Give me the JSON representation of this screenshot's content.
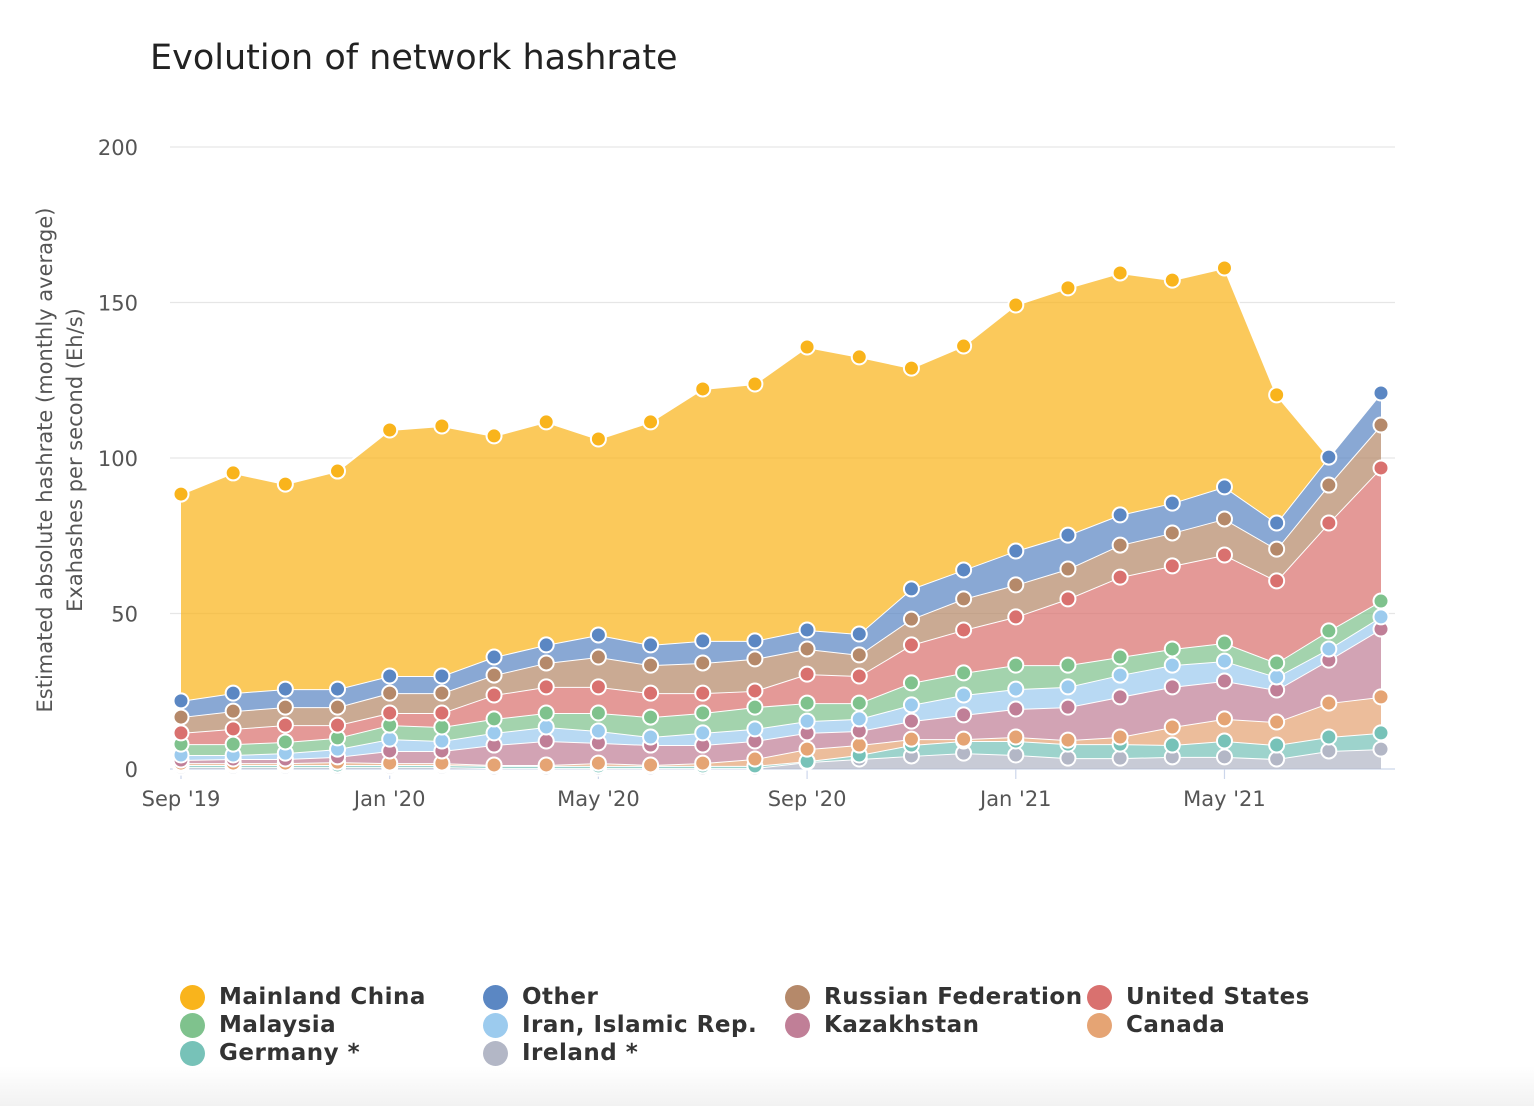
{
  "chart_data": {
    "type": "area",
    "stacked": true,
    "title": "Evolution of network hashrate",
    "ylabel": "Estimated absolute hashrate (monthly average)",
    "ylabel2": "Exahashes per second (Eh/s)",
    "ylim": [
      0,
      200
    ],
    "yticks": [
      0,
      50,
      100,
      150,
      200
    ],
    "grid": true,
    "legend_position": "bottom",
    "x": [
      "Sep '19",
      "Oct '19",
      "Nov '19",
      "Dec '19",
      "Jan '20",
      "Feb '20",
      "Mar '20",
      "Apr '20",
      "May '20",
      "Jun '20",
      "Jul '20",
      "Aug '20",
      "Sep '20",
      "Oct '20",
      "Nov '20",
      "Dec '20",
      "Jan '21",
      "Feb '21",
      "Mar '21",
      "Apr '21",
      "May '21",
      "Jun '21",
      "Jul '21",
      "Aug '21"
    ],
    "xtick_labels": [
      "Sep '19",
      "Jan '20",
      "May '20",
      "Sep '20",
      "Jan '21",
      "May '21"
    ],
    "series": [
      {
        "name": "Ireland *",
        "color": "#b3b7c6",
        "values": [
          0.6,
          0.6,
          0.6,
          0.6,
          0.6,
          0.6,
          0.3,
          0.3,
          0.3,
          0.3,
          0.3,
          0.3,
          2.2,
          3.2,
          4.2,
          5.1,
          4.5,
          3.5,
          3.5,
          3.9,
          3.9,
          3.2,
          5.8,
          6.4
        ]
      },
      {
        "name": "Germany *",
        "color": "#77c2b8",
        "values": [
          0.7,
          0.7,
          0.7,
          0.7,
          0.7,
          0.7,
          0.7,
          0.7,
          0.7,
          0.7,
          0.7,
          0.7,
          0.3,
          1.3,
          3.5,
          3.9,
          4.5,
          4.5,
          4.5,
          3.8,
          5.1,
          4.5,
          4.5,
          5.2
        ]
      },
      {
        "name": "Canada",
        "color": "#e5a474",
        "values": [
          0.6,
          0.6,
          0.6,
          0.9,
          0.6,
          0.6,
          0.3,
          0.3,
          0.9,
          0.3,
          0.9,
          2.2,
          3.9,
          3.2,
          1.9,
          0.6,
          1.3,
          1.3,
          2.3,
          5.8,
          7.1,
          7.4,
          10.9,
          11.6
        ]
      },
      {
        "name": "Kazakhstan",
        "color": "#c07f97",
        "values": [
          1.0,
          1.3,
          1.3,
          1.7,
          3.9,
          3.9,
          6.4,
          7.7,
          6.5,
          6.4,
          5.8,
          5.8,
          5.2,
          4.5,
          5.8,
          7.8,
          9.0,
          10.6,
          12.9,
          12.9,
          12.2,
          10.3,
          13.8,
          21.8
        ]
      },
      {
        "name": "Iran, Islamic Rep.",
        "color": "#9ccbee",
        "values": [
          1.6,
          1.3,
          1.9,
          2.5,
          3.8,
          3.2,
          3.9,
          4.5,
          3.8,
          2.6,
          3.9,
          3.9,
          3.8,
          3.9,
          5.2,
          6.4,
          6.4,
          6.5,
          7.0,
          7.0,
          6.4,
          4.2,
          3.6,
          3.9
        ]
      },
      {
        "name": "Malaysia",
        "color": "#7fc28d",
        "values": [
          3.5,
          3.5,
          3.6,
          3.6,
          4.5,
          4.5,
          4.5,
          4.5,
          5.8,
          6.4,
          6.4,
          7.0,
          5.8,
          5.1,
          7.1,
          7.1,
          7.7,
          7.0,
          5.8,
          5.2,
          5.8,
          4.5,
          5.8,
          5.1
        ]
      },
      {
        "name": "United States",
        "color": "#d9716f",
        "values": [
          3.6,
          4.9,
          5.4,
          4.1,
          3.9,
          4.5,
          7.7,
          8.4,
          8.4,
          7.7,
          6.4,
          5.2,
          9.3,
          8.7,
          12.2,
          13.8,
          15.5,
          21.3,
          25.7,
          26.7,
          28.3,
          26.4,
          34.7,
          42.8
        ]
      },
      {
        "name": "Russian Federation",
        "color": "#b5896a",
        "values": [
          5.1,
          5.7,
          5.8,
          5.8,
          6.4,
          6.4,
          6.4,
          7.7,
          9.6,
          9.0,
          9.7,
          10.3,
          8.1,
          6.8,
          8.3,
          10.0,
          10.3,
          9.6,
          10.3,
          10.6,
          11.6,
          10.2,
          12.2,
          13.8
        ]
      },
      {
        "name": "Other",
        "color": "#5b87c3",
        "values": [
          5.2,
          5.8,
          5.8,
          5.8,
          5.5,
          5.5,
          5.8,
          5.8,
          7.1,
          6.5,
          7.1,
          5.8,
          6.1,
          6.7,
          9.7,
          9.3,
          10.9,
          10.9,
          9.7,
          9.6,
          10.3,
          8.4,
          9.0,
          10.3
        ]
      },
      {
        "name": "Mainland China",
        "color": "#f9b41c",
        "values": [
          66.5,
          70.8,
          65.9,
          70.1,
          79.1,
          80.4,
          71.1,
          71.7,
          63.0,
          71.7,
          81.0,
          82.6,
          91.0,
          89.1,
          71.0,
          72.0,
          79.1,
          79.5,
          77.8,
          71.7,
          70.4,
          41.2,
          0,
          0
        ]
      }
    ]
  },
  "legend_order": [
    "Mainland China",
    "Other",
    "Russian Federation",
    "United States",
    "Malaysia",
    "Iran, Islamic Rep.",
    "Kazakhstan",
    "Canada",
    "Germany *",
    "Ireland *"
  ]
}
